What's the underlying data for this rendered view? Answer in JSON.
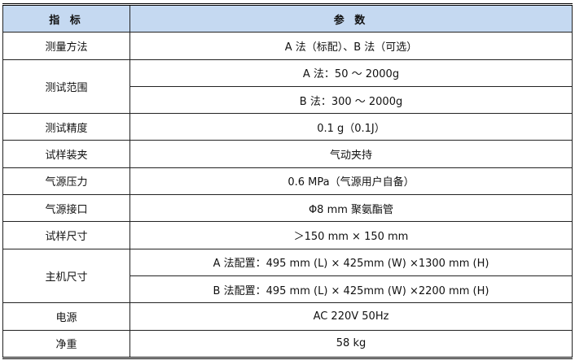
{
  "header": {
    "col1": "指 标",
    "col2": "参 数"
  },
  "rows": [
    {
      "label": "测量方法",
      "values": [
        "A 法（标配）、B 法（可选）"
      ]
    },
    {
      "label": "测试范围",
      "values": [
        "A 法：50 ～ 2000g",
        "B 法：300 ～ 2000g"
      ]
    },
    {
      "label": "测试精度",
      "values": [
        "0.1 g（0.1J）"
      ]
    },
    {
      "label": "试样装夹",
      "values": [
        "气动夹持"
      ]
    },
    {
      "label": "气源压力",
      "values": [
        "0.6 MPa（气源用户自备）"
      ]
    },
    {
      "label": "气源接口",
      "values": [
        "Φ8 mm 聚氨酯管"
      ]
    },
    {
      "label": "试样尺寸",
      "values": [
        "＞150 mm × 150 mm"
      ]
    },
    {
      "label": "主机尺寸",
      "values": [
        "A 法配置：495 mm (L) × 425mm (W) ×1300 mm (H)",
        "B 法配置：495 mm (L) × 425mm (W) ×2200 mm (H)"
      ]
    },
    {
      "label": "电源",
      "values": [
        "AC 220V    50Hz"
      ]
    },
    {
      "label": "净重",
      "values": [
        "58 kg"
      ]
    }
  ]
}
